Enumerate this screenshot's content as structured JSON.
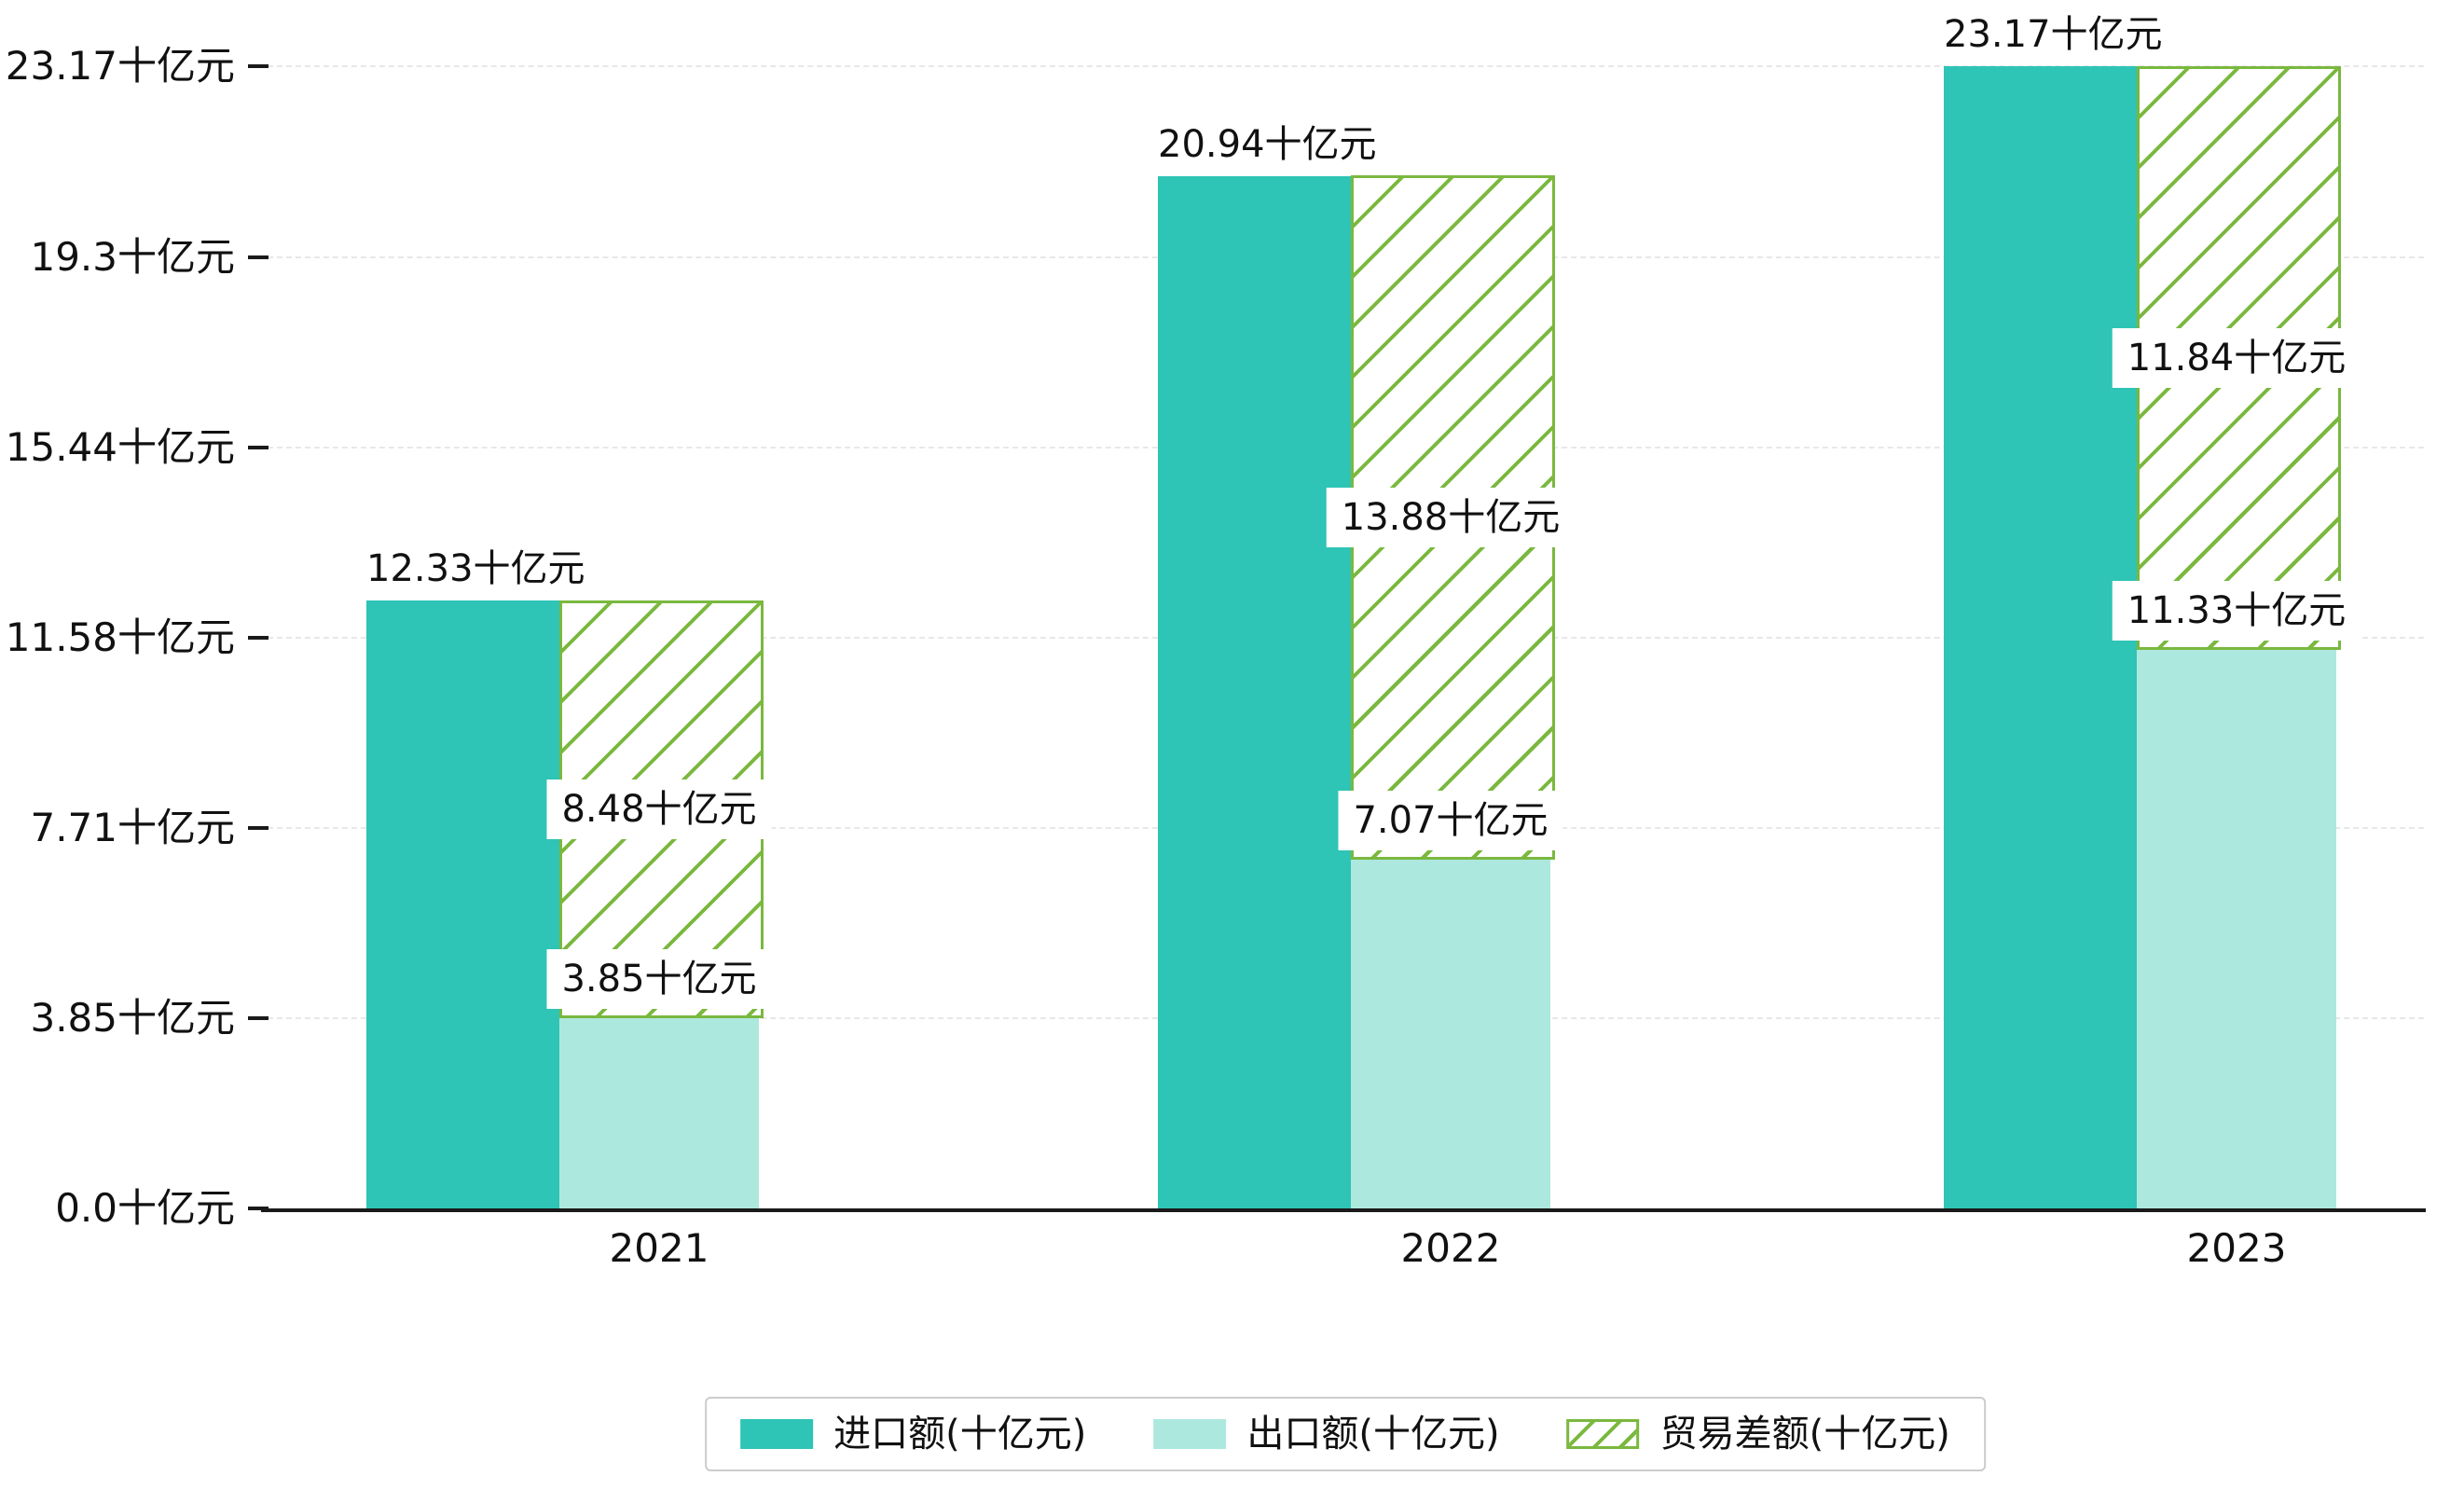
{
  "page": {
    "background": "#ffffff"
  },
  "colors": {
    "import_fill": "#2ec4b6",
    "export_fill": "#ade8de",
    "balance_line": "#7ab83e",
    "axis": "#1a1a1a",
    "grid": "#e8e8e8",
    "text": "#111111",
    "label_bg": "#ffffff",
    "legend_border": "#cccccc"
  },
  "chart_data": {
    "type": "bar",
    "title": "",
    "categories": [
      "2021",
      "2022",
      "2023"
    ],
    "unit": "十亿元",
    "series": [
      {
        "name": "进口额(十亿元)",
        "role": "import",
        "values": [
          12.33,
          20.94,
          23.17
        ],
        "labels": [
          "12.33十亿元",
          "20.94十亿元",
          "23.17十亿元"
        ]
      },
      {
        "name": "出口额(十亿元)",
        "role": "export",
        "values": [
          3.85,
          7.07,
          11.33
        ],
        "labels": [
          "3.85十亿元",
          "7.07十亿元",
          "11.33十亿元"
        ]
      },
      {
        "name": "贸易差额(十亿元)",
        "role": "balance",
        "values": [
          8.48,
          13.88,
          11.84
        ],
        "labels": [
          "8.48十亿元",
          "13.88十亿元",
          "11.84十亿元"
        ],
        "stacked_on": "export",
        "hatched": true
      }
    ],
    "y_axis": {
      "max": 23.17,
      "min": 0,
      "ticks": [
        {
          "value": 0.0,
          "label": "0.0十亿元"
        },
        {
          "value": 3.85,
          "label": "3.85十亿元"
        },
        {
          "value": 7.71,
          "label": "7.71十亿元"
        },
        {
          "value": 11.58,
          "label": "11.58十亿元"
        },
        {
          "value": 15.44,
          "label": "15.44十亿元"
        },
        {
          "value": 19.3,
          "label": "19.3十亿元"
        },
        {
          "value": 23.17,
          "label": "23.17十亿元"
        }
      ]
    },
    "grid": "dashed-horizontal",
    "legend": {
      "position": "bottom",
      "entries": [
        "进口额(十亿元)",
        "出口额(十亿元)",
        "贸易差额(十亿元)"
      ]
    }
  }
}
